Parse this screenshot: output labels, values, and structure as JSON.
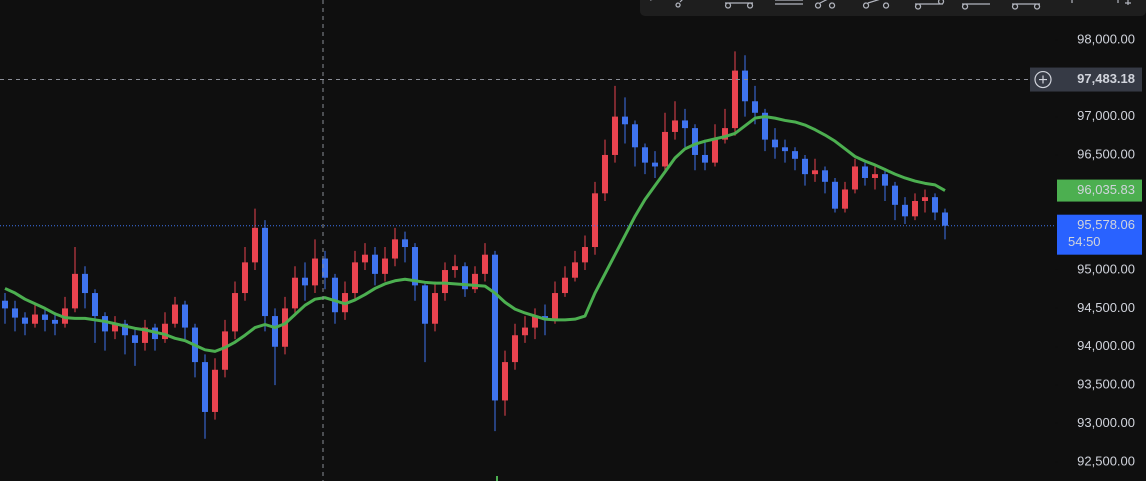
{
  "chart_data": {
    "type": "candlestick",
    "up_color": "#e8434f",
    "down_color": "#3f73ee",
    "open": [
      94600,
      94500,
      94380,
      94300,
      94420,
      94350,
      94300,
      94500,
      94950,
      94700,
      94400,
      94200,
      94300,
      94150,
      94050,
      94250,
      94100,
      94300,
      94550,
      94250,
      93800,
      93150,
      93700,
      94200,
      94700,
      95100,
      95550,
      94400,
      94000,
      94500,
      94900,
      94800,
      95150,
      94900,
      94450,
      94700,
      95100,
      95200,
      94950,
      95150,
      95400,
      95300,
      94800,
      94300,
      94700,
      95000,
      95050,
      94750,
      94950,
      95200,
      93300,
      93800,
      94150,
      94250,
      94400,
      94350,
      94700,
      94900,
      95100,
      95300,
      96000,
      96500,
      97000,
      96900,
      96600,
      96400,
      96350,
      96800,
      96950,
      96850,
      96500,
      96400,
      96700,
      96850,
      97600,
      97200,
      97050,
      96700,
      96600,
      96550,
      96450,
      96250,
      96300,
      96150,
      95800,
      96050,
      96350,
      96200,
      96250,
      96100,
      95850,
      95700,
      95900,
      95950,
      95750
    ],
    "high": [
      94700,
      94600,
      94450,
      94550,
      94500,
      94450,
      94650,
      95300,
      95050,
      94750,
      94450,
      94400,
      94350,
      94250,
      94350,
      94300,
      94450,
      94650,
      94600,
      94300,
      93900,
      93850,
      94350,
      94850,
      95300,
      95800,
      95650,
      94500,
      94650,
      95050,
      95100,
      95400,
      95250,
      94950,
      94850,
      95250,
      95350,
      95300,
      95300,
      95550,
      95500,
      95350,
      94850,
      94850,
      95100,
      95200,
      95100,
      95050,
      95350,
      95250,
      93950,
      94300,
      94400,
      94500,
      94550,
      94850,
      95050,
      95250,
      95450,
      96150,
      96700,
      97400,
      97250,
      96950,
      96650,
      96550,
      97050,
      97200,
      97100,
      96900,
      96700,
      96900,
      97100,
      97850,
      97800,
      97400,
      97100,
      96850,
      96700,
      96600,
      96500,
      96450,
      96350,
      96200,
      96150,
      96450,
      96400,
      96350,
      96300,
      96150,
      95950,
      96000,
      96050,
      96000,
      95800
    ],
    "low": [
      94300,
      94200,
      94150,
      94250,
      94200,
      94150,
      94250,
      94450,
      94500,
      94050,
      93950,
      94100,
      93900,
      93750,
      93950,
      93950,
      94050,
      94250,
      94100,
      93600,
      92800,
      93050,
      93600,
      94100,
      94600,
      95000,
      94200,
      93500,
      93900,
      94400,
      94600,
      94700,
      94750,
      94300,
      94350,
      94600,
      95000,
      94800,
      94850,
      95050,
      95100,
      94600,
      93800,
      94200,
      94600,
      94900,
      94650,
      94700,
      94850,
      92900,
      93100,
      93700,
      94050,
      94100,
      94150,
      94300,
      94650,
      94850,
      95000,
      95200,
      95900,
      96400,
      96650,
      96350,
      96250,
      96200,
      96300,
      96700,
      96600,
      96300,
      96300,
      96350,
      96650,
      96750,
      97000,
      96900,
      96550,
      96450,
      96400,
      96300,
      96100,
      96150,
      96000,
      95750,
      95750,
      96000,
      96100,
      96050,
      95900,
      95650,
      95600,
      95650,
      95750,
      95650,
      95400
    ],
    "close": [
      94500,
      94380,
      94300,
      94420,
      94350,
      94300,
      94500,
      94950,
      94700,
      94400,
      94200,
      94300,
      94150,
      94050,
      94250,
      94100,
      94300,
      94550,
      94250,
      93800,
      93150,
      93700,
      94200,
      94700,
      95100,
      95550,
      94400,
      94000,
      94500,
      94900,
      94800,
      95150,
      94900,
      94450,
      94700,
      95100,
      95200,
      94950,
      95150,
      95400,
      95300,
      94800,
      94300,
      94700,
      95000,
      95050,
      94750,
      94950,
      95200,
      93300,
      93800,
      94150,
      94250,
      94400,
      94350,
      94700,
      94900,
      95100,
      95300,
      96000,
      96500,
      97000,
      96900,
      96600,
      96400,
      96350,
      96800,
      96950,
      96850,
      96500,
      96400,
      96700,
      96850,
      97600,
      97200,
      97050,
      96700,
      96600,
      96550,
      96450,
      96250,
      96300,
      96150,
      95800,
      96050,
      96350,
      96200,
      96250,
      96100,
      95850,
      95700,
      95900,
      95950,
      95750,
      95578.06
    ],
    "moving_average": {
      "color": "#4caf50",
      "values": [
        94760,
        94700,
        94620,
        94560,
        94500,
        94430,
        94380,
        94370,
        94370,
        94350,
        94330,
        94300,
        94270,
        94240,
        94220,
        94190,
        94160,
        94110,
        94080,
        94020,
        93960,
        93940,
        93990,
        94060,
        94150,
        94250,
        94290,
        94250,
        94300,
        94420,
        94540,
        94620,
        94640,
        94600,
        94560,
        94610,
        94680,
        94760,
        94820,
        94860,
        94880,
        94860,
        94840,
        94830,
        94830,
        94820,
        94810,
        94800,
        94790,
        94700,
        94580,
        94490,
        94440,
        94400,
        94360,
        94350,
        94350,
        94360,
        94400,
        94700,
        94950,
        95200,
        95450,
        95700,
        95920,
        96100,
        96280,
        96460,
        96580,
        96640,
        96680,
        96710,
        96740,
        96780,
        96880,
        96980,
        97000,
        96980,
        96950,
        96930,
        96890,
        96830,
        96760,
        96680,
        96580,
        96480,
        96420,
        96370,
        96310,
        96250,
        96200,
        96160,
        96130,
        96110,
        96035.83
      ]
    },
    "ylim": [
      92250,
      98520
    ],
    "yticks": [
      {
        "value": 92500,
        "label": "92,500.00"
      },
      {
        "value": 93000,
        "label": "93,000.00"
      },
      {
        "value": 93500,
        "label": "93,500.00"
      },
      {
        "value": 94000,
        "label": "94,000.00"
      },
      {
        "value": 94500,
        "label": "94,500.00"
      },
      {
        "value": 95000,
        "label": "95,000.00"
      },
      {
        "value": 95500,
        "label": "95,500.00"
      },
      {
        "value": 96000,
        "label": "96,000.00"
      },
      {
        "value": 96500,
        "label": "96,500.00"
      },
      {
        "value": 97000,
        "label": "97,000.00"
      },
      {
        "value": 97500,
        "label": "97,500.00"
      },
      {
        "value": 98000,
        "label": "98,000.00"
      }
    ],
    "crosshair_price": {
      "value": 97483.18,
      "label": "97,483.18"
    },
    "ma_price": {
      "value": 96035.83,
      "label": "96,035.83"
    },
    "last_price": {
      "value": 95578.06,
      "label": "95,578.06",
      "countdown": "54:50"
    }
  }
}
